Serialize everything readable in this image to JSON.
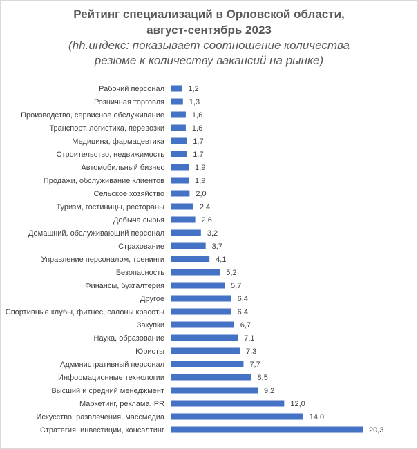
{
  "chart_data": {
    "type": "bar",
    "orientation": "horizontal",
    "title_lines": [
      "Рейтинг специализаций в Орловской области,",
      "август-сентябрь 2023"
    ],
    "subtitle_lines": [
      "(hh.индекс: показывает соотношение количества",
      "резюме к количеству вакансий на рынке)"
    ],
    "bar_color": "#4472c4",
    "categories": [
      "Рабочий персонал",
      "Розничная торговля",
      "Производство, сервисное обслуживание",
      "Транспорт, логистика, перевозки",
      "Медицина, фармацевтика",
      "Строительство, недвижимость",
      "Автомобильный бизнес",
      "Продажи, обслуживание клиентов",
      "Сельское хозяйство",
      "Туризм, гостиницы, рестораны",
      "Добыча сырья",
      "Домашний, обслуживающий персонал",
      "Страхование",
      "Управление персоналом, тренинги",
      "Безопасность",
      "Финансы, бухгалтерия",
      "Другое",
      "Спортивные клубы, фитнес, салоны красоты",
      "Закупки",
      "Наука, образование",
      "Юристы",
      "Административный персонал",
      "Информационные технологии",
      "Высший и средний менеджмент",
      "Маркетинг, реклама, PR",
      "Искусство, развлечения, массмедиа",
      "Стратегия, инвестиции, консалтинг"
    ],
    "values": [
      1.2,
      1.3,
      1.6,
      1.6,
      1.7,
      1.7,
      1.9,
      1.9,
      2.0,
      2.4,
      2.6,
      3.2,
      3.7,
      4.1,
      5.2,
      5.7,
      6.4,
      6.4,
      6.7,
      7.1,
      7.3,
      7.7,
      8.5,
      9.2,
      12.0,
      14.0,
      20.3
    ],
    "value_labels": [
      "1,2",
      "1,3",
      "1,6",
      "1,6",
      "1,7",
      "1,7",
      "1,9",
      "1,9",
      "2,0",
      "2,4",
      "2,6",
      "3,2",
      "3,7",
      "4,1",
      "5,2",
      "5,7",
      "6,4",
      "6,4",
      "6,7",
      "7,1",
      "7,3",
      "7,7",
      "8,5",
      "9,2",
      "12,0",
      "14,0",
      "20,3"
    ],
    "xlim": [
      0,
      20.3
    ],
    "grid": false,
    "legend": "none"
  }
}
